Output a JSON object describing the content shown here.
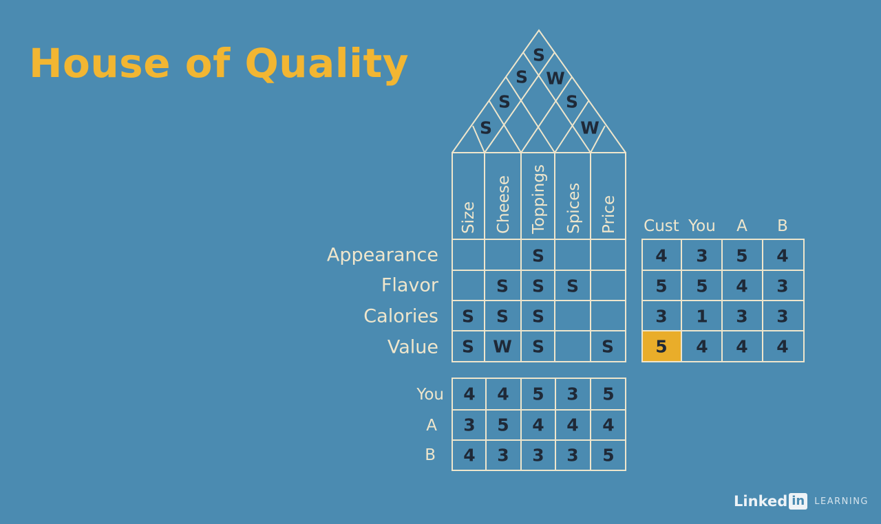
{
  "title": "House of Quality",
  "colors": {
    "background": "#4b8bb1",
    "title": "#f2b632",
    "lines": "#efe6cc",
    "highlight": "#e9ad2a",
    "marks": "#1f2937"
  },
  "roof_marks": [
    {
      "pair": [
        "Size",
        "Cheese"
      ],
      "value": "S"
    },
    {
      "pair": [
        "Cheese",
        "Toppings"
      ],
      "value": "S"
    },
    {
      "pair": [
        "Toppings",
        "Spices"
      ],
      "value": "S"
    },
    {
      "pair": [
        "Spices",
        "Price"
      ],
      "value": "W"
    },
    {
      "pair": [
        "Toppings",
        "Price"
      ],
      "value": "W"
    },
    {
      "pair": [
        "Size",
        "Toppings"
      ],
      "value": "S"
    },
    {
      "pair": [
        "Size",
        "Spices"
      ],
      "value": "S"
    }
  ],
  "technical_requirements": [
    "Size",
    "Cheese",
    "Toppings",
    "Spices",
    "Price"
  ],
  "customer_requirements": [
    "Appearance",
    "Flavor",
    "Calories",
    "Value"
  ],
  "relationship_matrix": [
    [
      "",
      "",
      "S",
      "",
      ""
    ],
    [
      "",
      "S",
      "S",
      "S",
      ""
    ],
    [
      "S",
      "S",
      "S",
      "",
      ""
    ],
    [
      "S",
      "W",
      "S",
      "",
      "S"
    ]
  ],
  "competitive_headers": [
    "Cust",
    "You",
    "A",
    "B"
  ],
  "competitive_ratings": [
    [
      4,
      3,
      5,
      4
    ],
    [
      5,
      5,
      4,
      3
    ],
    [
      3,
      1,
      3,
      3
    ],
    [
      5,
      4,
      4,
      4
    ]
  ],
  "highlighted_cell": {
    "row": 3,
    "col": 0
  },
  "technical_labels": [
    "You",
    "A",
    "B"
  ],
  "technical_ratings": [
    [
      4,
      4,
      5,
      3,
      5
    ],
    [
      3,
      5,
      4,
      4,
      4
    ],
    [
      4,
      3,
      3,
      3,
      5
    ]
  ],
  "brand": {
    "word": "Linked",
    "badge": "in",
    "suffix": "LEARNING"
  }
}
